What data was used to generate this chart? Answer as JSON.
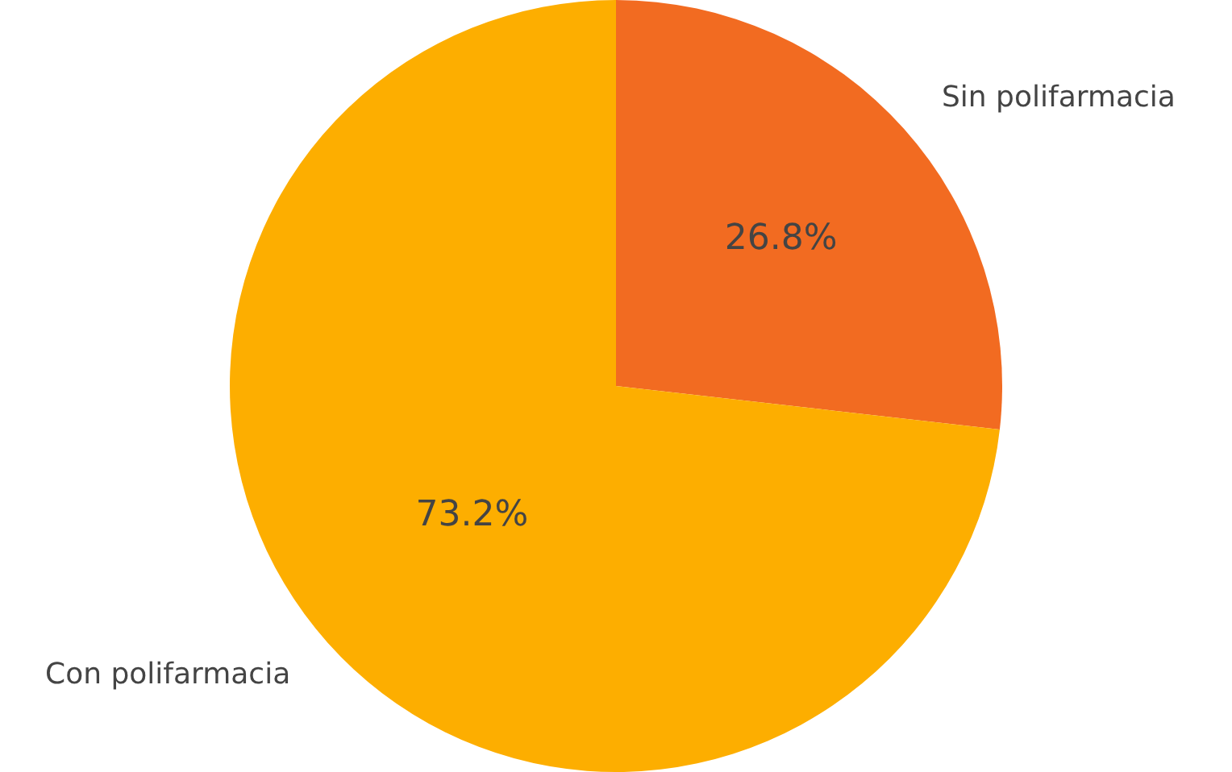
{
  "chart_data": {
    "type": "pie",
    "categories": [
      "Sin polifarmacia",
      "Con polifarmacia"
    ],
    "values": [
      26.8,
      73.2
    ],
    "value_labels": [
      "26.8%",
      "73.2%"
    ],
    "colors": [
      "#f26b21",
      "#fdae00"
    ],
    "legend": false
  }
}
